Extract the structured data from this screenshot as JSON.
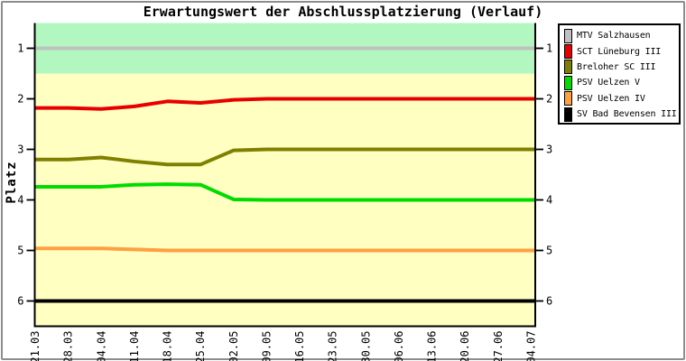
{
  "window": {
    "background": "#FFFFFF",
    "border_color": "#8C8C8C"
  },
  "chart_data": {
    "type": "line",
    "title": "Erwartungswert der Abschlussplatzierung (Verlauf)",
    "ylabel": "Platz",
    "x": [
      "21.03",
      "28.03",
      "04.04",
      "11.04",
      "18.04",
      "25.04",
      "02.05",
      "09.05",
      "16.05",
      "23.05",
      "30.05",
      "06.06",
      "13.06",
      "20.06",
      "27.06",
      "04.07"
    ],
    "y_ticks": [
      1,
      2,
      3,
      4,
      5,
      6
    ],
    "ylim": [
      0.5,
      6.5
    ],
    "y_axis_inverted": true,
    "grid": false,
    "plot_background": "#FFFFC2",
    "first_place_band": {
      "from": 0.5,
      "to": 1.5,
      "color": "#B3F7C0"
    },
    "axis_color": "#000000",
    "legend_position": "right",
    "series": [
      {
        "name": "MTV Salzhausen",
        "color": "#C0C0C0",
        "values": [
          1,
          1,
          1,
          1,
          1,
          1,
          1,
          1,
          1,
          1,
          1,
          1,
          1,
          1,
          1,
          1
        ]
      },
      {
        "name": "SCT Lüneburg III",
        "color": "#E80000",
        "values": [
          2.18,
          2.18,
          2.2,
          2.15,
          2.05,
          2.08,
          2.02,
          2,
          2,
          2,
          2,
          2,
          2,
          2,
          2,
          2
        ]
      },
      {
        "name": "Breloher SC III",
        "color": "#808000",
        "values": [
          3.2,
          3.2,
          3.16,
          3.24,
          3.3,
          3.3,
          3.02,
          3,
          3,
          3,
          3,
          3,
          3,
          3,
          3,
          3
        ]
      },
      {
        "name": "PSV Uelzen V",
        "color": "#00DC00",
        "values": [
          3.74,
          3.74,
          3.74,
          3.7,
          3.69,
          3.7,
          3.99,
          4,
          4,
          4,
          4,
          4,
          4,
          4,
          4,
          4
        ]
      },
      {
        "name": "PSV Uelzen IV",
        "color": "#FFA040",
        "values": [
          4.96,
          4.96,
          4.96,
          4.98,
          5,
          5,
          5,
          5,
          5,
          5,
          5,
          5,
          5,
          5,
          5,
          5
        ]
      },
      {
        "name": "SV Bad Bevensen III",
        "color": "#000000",
        "values": [
          6,
          6,
          6,
          6,
          6,
          6,
          6,
          6,
          6,
          6,
          6,
          6,
          6,
          6,
          6,
          6
        ]
      }
    ]
  }
}
